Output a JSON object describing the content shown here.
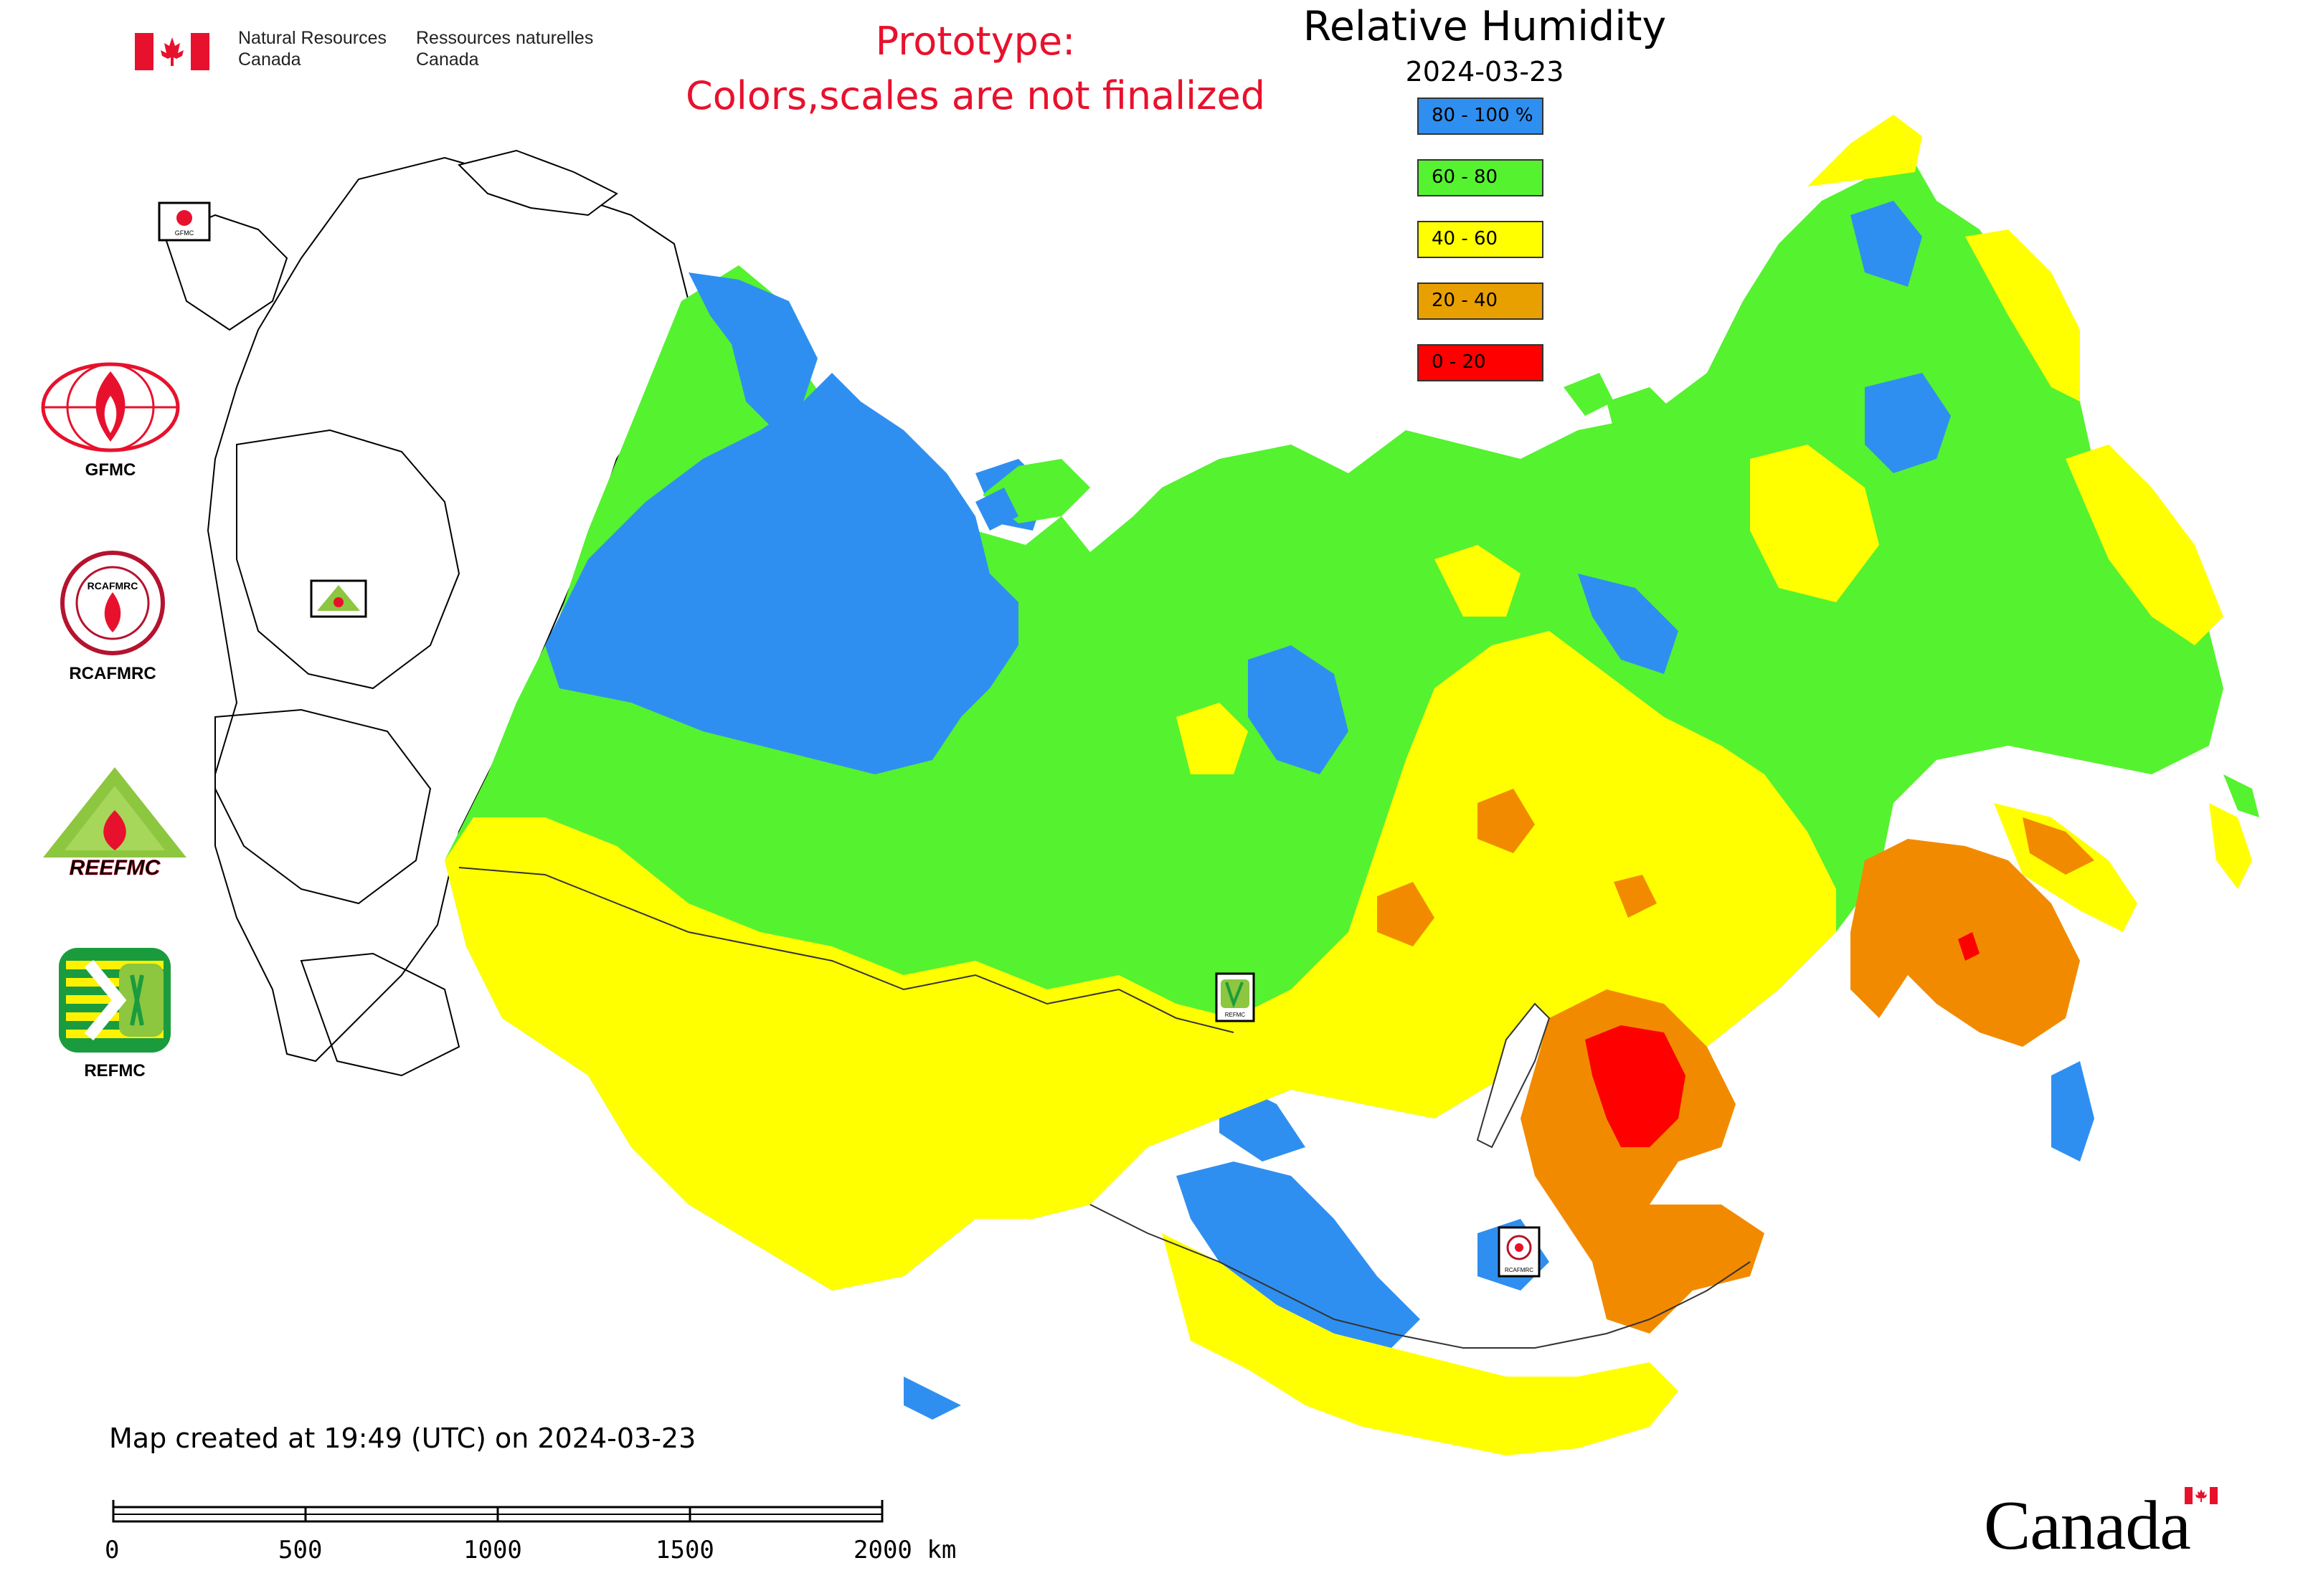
{
  "header": {
    "org_en_line1": "Natural Resources",
    "org_en_line2": "Canada",
    "org_fr_line1": "Ressources naturelles",
    "org_fr_line2": "Canada",
    "prototype_line1": "Prototype:",
    "prototype_line2": "Colors,scales are not finalized"
  },
  "map": {
    "title": "Relative Humidity",
    "date": "2024-03-23"
  },
  "legend": {
    "items": [
      {
        "label": "80 - 100 %",
        "color": "#2f8ff0"
      },
      {
        "label": "60 - 80",
        "color": "#55f230"
      },
      {
        "label": "40 - 60",
        "color": "#ffff00"
      },
      {
        "label": "20 - 40",
        "color": "#e8a000"
      },
      {
        "label": "0 - 20",
        "color": "#ff0000"
      }
    ]
  },
  "partners": [
    {
      "label": "GFMC",
      "icon": "gfmc-logo-icon"
    },
    {
      "label": "RCAFMRC",
      "icon": "rcafmrc-logo-icon"
    },
    {
      "label": "REEFMC",
      "icon": "reefmc-logo-icon"
    },
    {
      "label": "REFMC",
      "icon": "refmc-logo-icon"
    }
  ],
  "logo_texts": {
    "reefmc_wordmark": "REEFMC",
    "gfmc_small": "GFMC",
    "rcafmrc_small": "RCAFMRC",
    "refmc_small": "REFMC"
  },
  "footer": {
    "created": "Map created at 19:49 (UTC) on 2024-03-23",
    "scale_ticks": [
      "0",
      "500",
      "1000",
      "1500",
      "2000 km"
    ],
    "canada": "Canada"
  },
  "colors": {
    "blue": "#2f8ff0",
    "green": "#55f230",
    "yellow": "#ffff00",
    "orange": "#e8a000",
    "orange_dark": "#f28a00",
    "red": "#ff0000",
    "prototype_red": "#e8112d"
  }
}
